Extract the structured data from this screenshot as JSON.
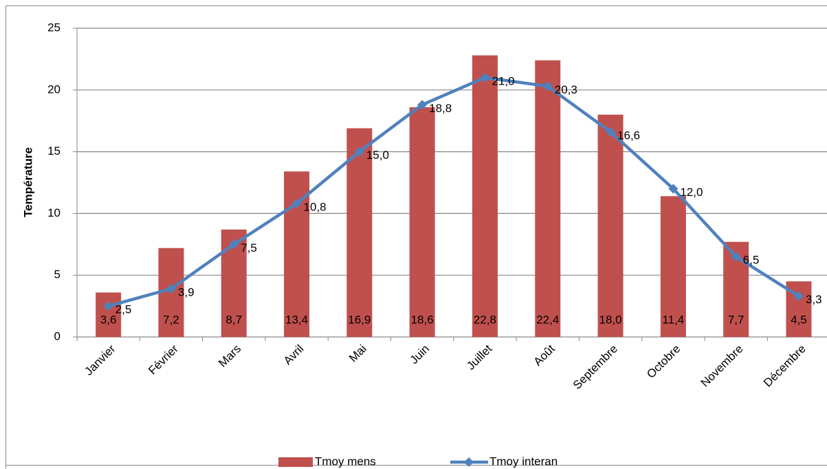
{
  "chart_data": {
    "type": "combo",
    "y_label": "Température",
    "categories": [
      "Janvier",
      "Février",
      "Mars",
      "Avril",
      "Mai",
      "Juin",
      "Juillet",
      "Août",
      "Septembre",
      "Octobre",
      "Novembre",
      "Décembre"
    ],
    "series": [
      {
        "name": "Tmoy mens",
        "type": "bar",
        "color": "#c0504d",
        "values": [
          3.6,
          7.2,
          8.7,
          13.4,
          16.9,
          18.6,
          22.8,
          22.4,
          18.0,
          11.4,
          7.7,
          4.5
        ],
        "value_labels": [
          "3,6",
          "7,2",
          "8,7",
          "13,4",
          "16,9",
          "18,6",
          "22,8",
          "22,4",
          "18,0",
          "11,4",
          "7,7",
          "4,5"
        ]
      },
      {
        "name": "Tmoy interan",
        "type": "line",
        "color": "#4f81bd",
        "values": [
          2.5,
          3.9,
          7.5,
          10.8,
          15.0,
          18.8,
          21.0,
          20.3,
          16.6,
          12.0,
          6.5,
          3.3
        ],
        "value_labels": [
          "2,5",
          "3,9",
          "7,5",
          "10,8",
          "15,0",
          "18,8",
          "21,0",
          "20,3",
          "16,6",
          "12,0",
          "6,5",
          "3,3"
        ]
      }
    ],
    "ylim": [
      0,
      25
    ],
    "yticks": [
      0,
      5,
      10,
      15,
      20,
      25
    ],
    "grid": true,
    "legend": "bottom"
  }
}
